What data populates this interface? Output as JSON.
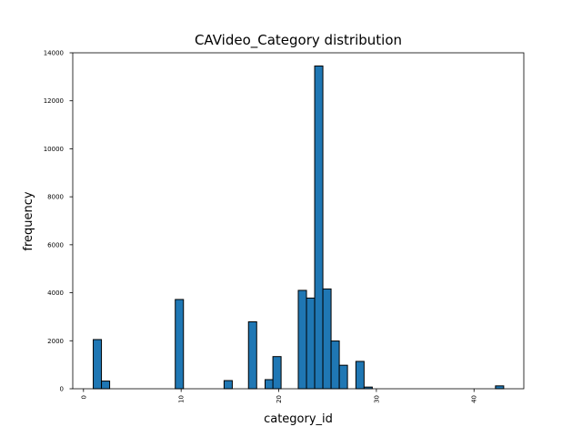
{
  "chart_data": {
    "type": "bar",
    "title": "CAVideo_Category distribution",
    "xlabel": "category_id",
    "ylabel": "frequency",
    "xlim": [
      -1.1,
      45.1
    ],
    "ylim": [
      0,
      14000
    ],
    "bin_width": 0.84,
    "x_ticks": [
      0,
      10,
      20,
      30,
      40
    ],
    "y_ticks": [
      0,
      2000,
      4000,
      6000,
      8000,
      10000,
      12000,
      14000
    ],
    "bar_color": "#1f77b4",
    "edge_color": "#000000",
    "grid": false,
    "bins": [
      {
        "x": 1.0,
        "value": 2050
      },
      {
        "x": 1.84,
        "value": 320
      },
      {
        "x": 9.4,
        "value": 3720
      },
      {
        "x": 14.4,
        "value": 340
      },
      {
        "x": 16.9,
        "value": 2790
      },
      {
        "x": 18.6,
        "value": 380
      },
      {
        "x": 19.4,
        "value": 1340
      },
      {
        "x": 22.0,
        "value": 4100
      },
      {
        "x": 22.84,
        "value": 3780
      },
      {
        "x": 23.68,
        "value": 13450
      },
      {
        "x": 24.52,
        "value": 4160
      },
      {
        "x": 25.36,
        "value": 1990
      },
      {
        "x": 26.2,
        "value": 980
      },
      {
        "x": 27.9,
        "value": 1140
      },
      {
        "x": 28.74,
        "value": 70
      },
      {
        "x": 42.2,
        "value": 120
      }
    ]
  }
}
